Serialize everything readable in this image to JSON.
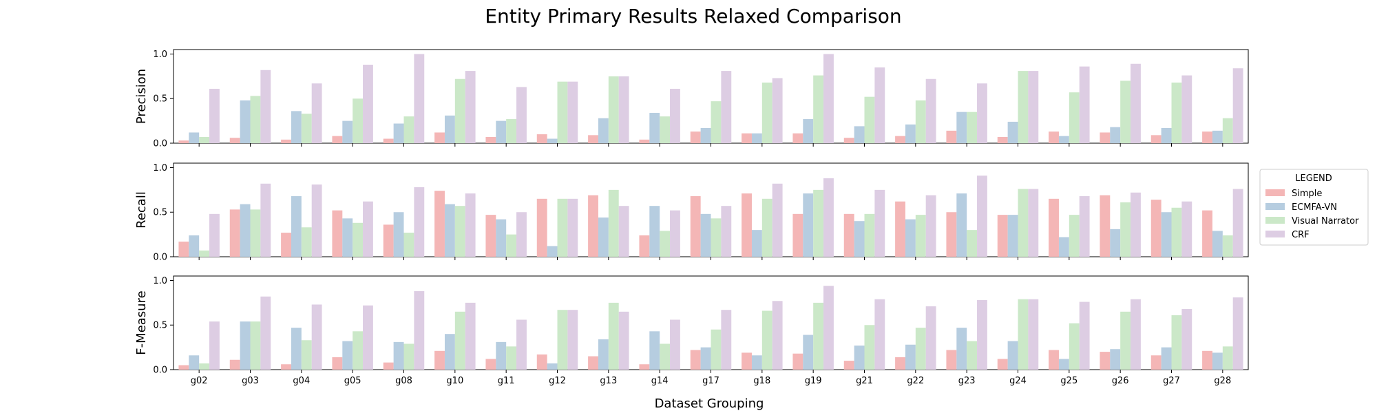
{
  "chart_data": {
    "type": "bar",
    "title": "Entity Primary Results Relaxed Comparison",
    "xlabel": "Dataset Grouping",
    "categories": [
      "g02",
      "g03",
      "g04",
      "g05",
      "g08",
      "g10",
      "g11",
      "g12",
      "g13",
      "g14",
      "g17",
      "g18",
      "g19",
      "g21",
      "g22",
      "g23",
      "g24",
      "g25",
      "g26",
      "g27",
      "g28"
    ],
    "legend": {
      "title": "LEGEND",
      "placement": "right-center",
      "entries": [
        "Simple",
        "ECMFA-VN",
        "Visual Narrator",
        "CRF"
      ]
    },
    "colors": {
      "Simple": "#f4b6b6",
      "ECMFA-VN": "#b6cde0",
      "Visual Narrator": "#cbe8c8",
      "CRF": "#ddcde3"
    },
    "panels": [
      {
        "ylabel": "Precision",
        "ylim": [
          0,
          1.05
        ],
        "yticks": [
          "0.0",
          "0.5",
          "1.0"
        ],
        "series": [
          {
            "name": "Simple",
            "values": [
              0.03,
              0.06,
              0.04,
              0.08,
              0.05,
              0.12,
              0.07,
              0.1,
              0.09,
              0.04,
              0.13,
              0.11,
              0.11,
              0.06,
              0.08,
              0.14,
              0.07,
              0.13,
              0.12,
              0.09,
              0.13
            ]
          },
          {
            "name": "ECMFA-VN",
            "values": [
              0.12,
              0.48,
              0.36,
              0.25,
              0.22,
              0.31,
              0.25,
              0.05,
              0.28,
              0.34,
              0.17,
              0.11,
              0.27,
              0.19,
              0.21,
              0.35,
              0.24,
              0.08,
              0.18,
              0.17,
              0.14
            ]
          },
          {
            "name": "Visual Narrator",
            "values": [
              0.07,
              0.53,
              0.33,
              0.5,
              0.3,
              0.72,
              0.27,
              0.69,
              0.75,
              0.3,
              0.47,
              0.68,
              0.76,
              0.52,
              0.48,
              0.35,
              0.81,
              0.57,
              0.7,
              0.68,
              0.28
            ]
          },
          {
            "name": "CRF",
            "values": [
              0.61,
              0.82,
              0.67,
              0.88,
              1.0,
              0.81,
              0.63,
              0.69,
              0.75,
              0.61,
              0.81,
              0.73,
              1.0,
              0.85,
              0.72,
              0.67,
              0.81,
              0.86,
              0.89,
              0.76,
              0.84
            ]
          }
        ]
      },
      {
        "ylabel": "Recall",
        "ylim": [
          0,
          1.05
        ],
        "yticks": [
          "0.0",
          "0.5",
          "1.0"
        ],
        "series": [
          {
            "name": "Simple",
            "values": [
              0.17,
              0.53,
              0.27,
              0.52,
              0.36,
              0.74,
              0.47,
              0.65,
              0.69,
              0.24,
              0.68,
              0.71,
              0.48,
              0.48,
              0.62,
              0.5,
              0.47,
              0.65,
              0.69,
              0.64,
              0.52
            ]
          },
          {
            "name": "ECMFA-VN",
            "values": [
              0.24,
              0.59,
              0.68,
              0.43,
              0.5,
              0.59,
              0.42,
              0.12,
              0.44,
              0.57,
              0.48,
              0.3,
              0.71,
              0.4,
              0.42,
              0.71,
              0.47,
              0.22,
              0.31,
              0.5,
              0.29
            ]
          },
          {
            "name": "Visual Narrator",
            "values": [
              0.07,
              0.53,
              0.33,
              0.38,
              0.27,
              0.57,
              0.25,
              0.65,
              0.75,
              0.29,
              0.43,
              0.65,
              0.75,
              0.48,
              0.47,
              0.3,
              0.76,
              0.47,
              0.61,
              0.55,
              0.24
            ]
          },
          {
            "name": "CRF",
            "values": [
              0.48,
              0.82,
              0.81,
              0.62,
              0.78,
              0.71,
              0.5,
              0.65,
              0.57,
              0.52,
              0.57,
              0.82,
              0.88,
              0.75,
              0.69,
              0.91,
              0.76,
              0.68,
              0.72,
              0.62,
              0.76
            ]
          }
        ]
      },
      {
        "ylabel": "F-Measure",
        "ylim": [
          0,
          1.05
        ],
        "yticks": [
          "0.0",
          "0.5",
          "1.0"
        ],
        "series": [
          {
            "name": "Simple",
            "values": [
              0.05,
              0.11,
              0.06,
              0.14,
              0.08,
              0.21,
              0.12,
              0.17,
              0.15,
              0.06,
              0.22,
              0.19,
              0.18,
              0.1,
              0.14,
              0.22,
              0.12,
              0.22,
              0.2,
              0.16,
              0.21
            ]
          },
          {
            "name": "ECMFA-VN",
            "values": [
              0.16,
              0.54,
              0.47,
              0.32,
              0.31,
              0.4,
              0.31,
              0.07,
              0.34,
              0.43,
              0.25,
              0.16,
              0.39,
              0.27,
              0.28,
              0.47,
              0.32,
              0.12,
              0.23,
              0.25,
              0.19
            ]
          },
          {
            "name": "Visual Narrator",
            "values": [
              0.07,
              0.54,
              0.33,
              0.43,
              0.29,
              0.65,
              0.26,
              0.67,
              0.75,
              0.29,
              0.45,
              0.66,
              0.75,
              0.5,
              0.47,
              0.32,
              0.79,
              0.52,
              0.65,
              0.61,
              0.26
            ]
          },
          {
            "name": "CRF",
            "values": [
              0.54,
              0.82,
              0.73,
              0.72,
              0.88,
              0.75,
              0.56,
              0.67,
              0.65,
              0.56,
              0.67,
              0.77,
              0.94,
              0.79,
              0.71,
              0.78,
              0.79,
              0.76,
              0.79,
              0.68,
              0.81
            ]
          }
        ]
      }
    ]
  }
}
